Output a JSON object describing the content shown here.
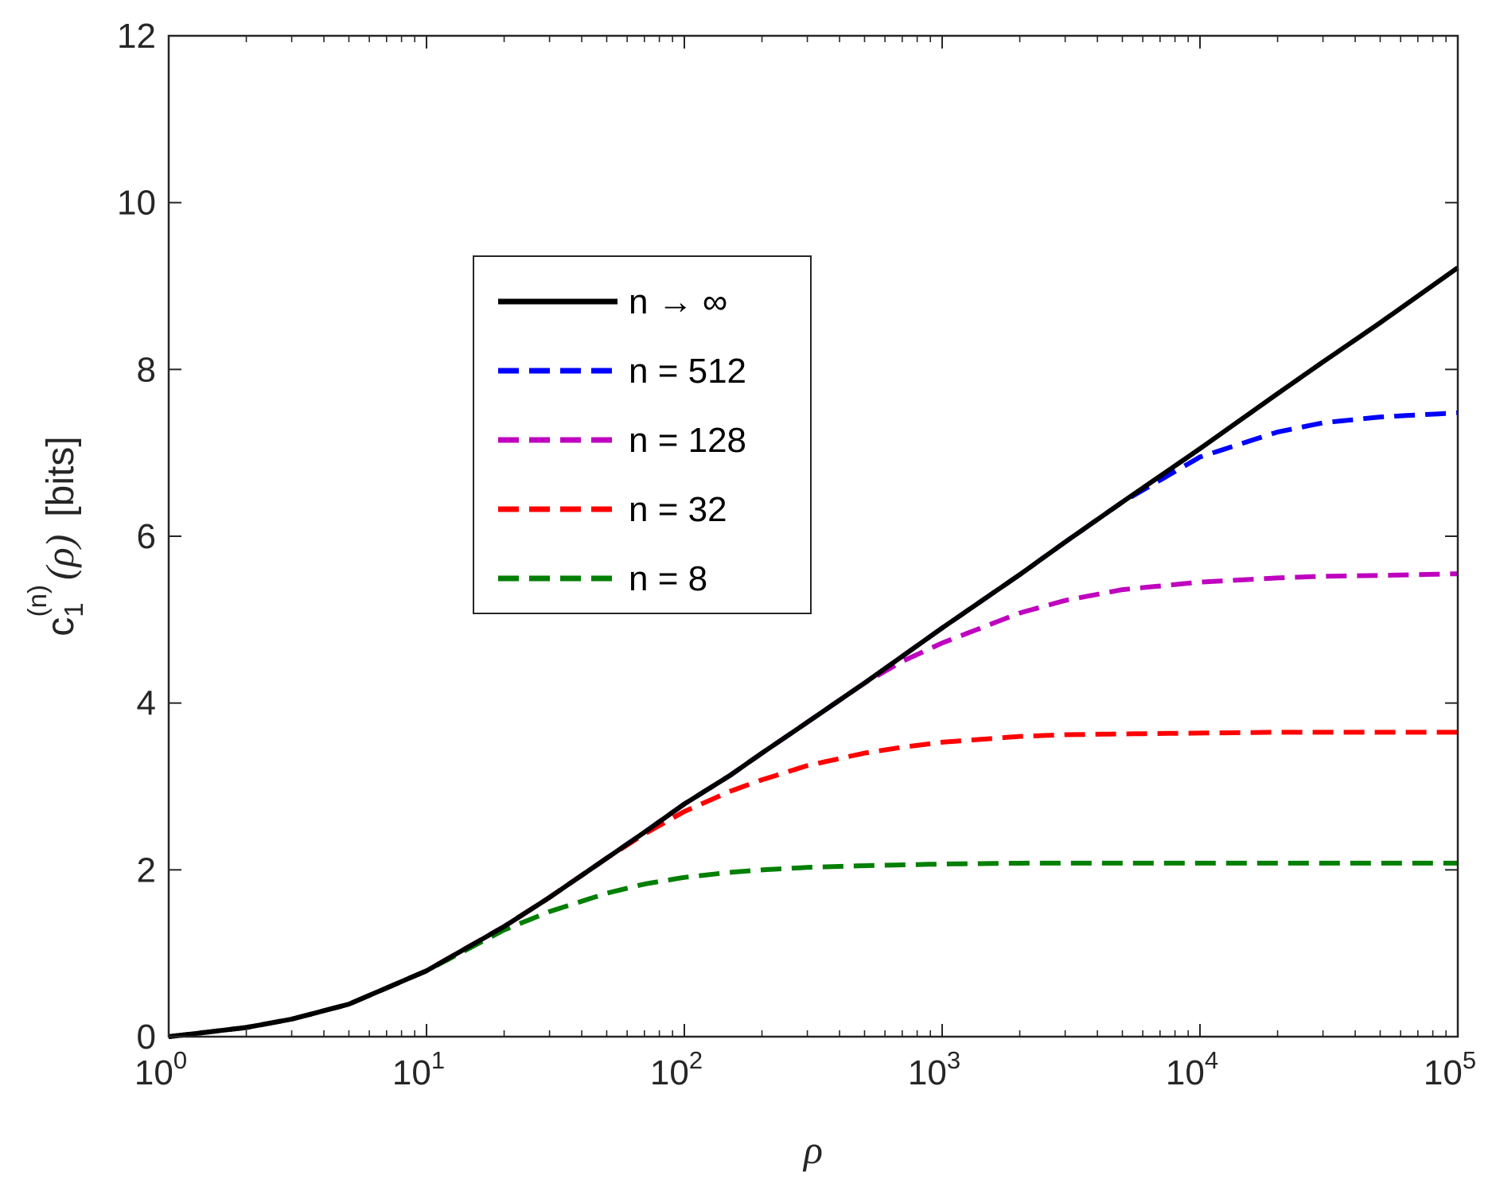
{
  "chart_data": {
    "type": "line",
    "xscale": "log",
    "xlim": [
      1,
      100000
    ],
    "ylim": [
      0,
      12
    ],
    "x_ticks": [
      {
        "base": "10",
        "exp": "0",
        "value": 1
      },
      {
        "base": "10",
        "exp": "1",
        "value": 10
      },
      {
        "base": "10",
        "exp": "2",
        "value": 100
      },
      {
        "base": "10",
        "exp": "3",
        "value": 1000
      },
      {
        "base": "10",
        "exp": "4",
        "value": 10000
      },
      {
        "base": "10",
        "exp": "5",
        "value": 100000
      }
    ],
    "y_ticks": [
      "0",
      "2",
      "4",
      "6",
      "8",
      "10",
      "12"
    ],
    "xlabel": "ρ",
    "ylabel": {
      "main": "c",
      "sub": "1",
      "sup": "(n)",
      "arg": "(ρ)",
      "unit": "[bits]"
    },
    "grid": false,
    "legend_position": "upper-left-center",
    "x": [
      1,
      2,
      3,
      5,
      10,
      20,
      30,
      50,
      70,
      100,
      150,
      200,
      300,
      500,
      700,
      1000,
      2000,
      3000,
      5000,
      10000,
      20000,
      30000,
      50000,
      100000
    ],
    "series": [
      {
        "name": "n → ∞",
        "color": "#000000",
        "style": "solid",
        "values": [
          0.0,
          0.11,
          0.21,
          0.39,
          0.79,
          1.32,
          1.67,
          2.14,
          2.45,
          2.79,
          3.13,
          3.4,
          3.77,
          4.24,
          4.56,
          4.9,
          5.54,
          5.93,
          6.41,
          7.05,
          7.71,
          8.09,
          8.56,
          9.22
        ]
      },
      {
        "name": "n = 512",
        "color": "#0000ff",
        "style": "dashed",
        "values": [
          0.0,
          0.11,
          0.21,
          0.39,
          0.79,
          1.32,
          1.67,
          2.14,
          2.45,
          2.79,
          3.13,
          3.4,
          3.77,
          4.24,
          4.56,
          4.9,
          5.54,
          5.93,
          6.41,
          6.95,
          7.25,
          7.36,
          7.43,
          7.48
        ]
      },
      {
        "name": "n = 128",
        "color": "#bf00bf",
        "style": "dashed",
        "values": [
          0.0,
          0.11,
          0.21,
          0.39,
          0.79,
          1.32,
          1.67,
          2.14,
          2.45,
          2.79,
          3.13,
          3.4,
          3.77,
          4.24,
          4.5,
          4.72,
          5.08,
          5.23,
          5.36,
          5.45,
          5.5,
          5.52,
          5.53,
          5.55
        ]
      },
      {
        "name": "n = 32",
        "color": "#ff0000",
        "style": "dashed",
        "values": [
          0.0,
          0.11,
          0.21,
          0.39,
          0.79,
          1.32,
          1.67,
          2.14,
          2.43,
          2.7,
          2.94,
          3.08,
          3.25,
          3.4,
          3.47,
          3.53,
          3.6,
          3.62,
          3.63,
          3.64,
          3.65,
          3.65,
          3.65,
          3.65
        ]
      },
      {
        "name": "n = 8",
        "color": "#007f00",
        "style": "dashed",
        "values": [
          0.0,
          0.11,
          0.21,
          0.39,
          0.79,
          1.28,
          1.5,
          1.72,
          1.83,
          1.91,
          1.97,
          2.0,
          2.03,
          2.05,
          2.06,
          2.07,
          2.08,
          2.08,
          2.08,
          2.08,
          2.08,
          2.08,
          2.08,
          2.08
        ]
      }
    ]
  }
}
